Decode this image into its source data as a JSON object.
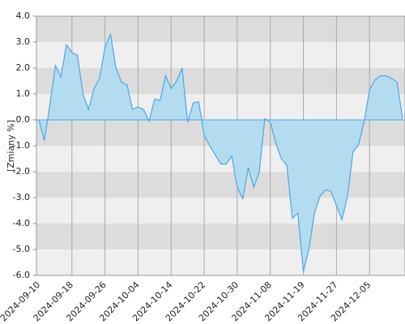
{
  "chart_data": {
    "type": "area",
    "ylabel": "[Zmiany %]",
    "categories": [
      "2024-09-10",
      null,
      null,
      null,
      null,
      null,
      "2024-09-18",
      null,
      null,
      null,
      null,
      null,
      "2024-09-26",
      null,
      null,
      null,
      null,
      null,
      "2024-10-04",
      null,
      null,
      null,
      null,
      null,
      "2024-10-14",
      null,
      null,
      null,
      null,
      null,
      "2024-10-22",
      null,
      null,
      null,
      null,
      null,
      "2024-10-30",
      null,
      null,
      null,
      null,
      null,
      "2024-11-08",
      null,
      null,
      null,
      null,
      null,
      "2024-11-19",
      null,
      null,
      null,
      null,
      null,
      "2024-11-27",
      null,
      null,
      null,
      null,
      null,
      "2024-12-05",
      null,
      null,
      null,
      null,
      null,
      null
    ],
    "values": [
      0.0,
      -0.8,
      0.6,
      2.1,
      1.65,
      2.9,
      2.6,
      2.5,
      1.0,
      0.4,
      1.2,
      1.6,
      2.8,
      3.3,
      2.0,
      1.45,
      1.35,
      0.4,
      0.5,
      0.4,
      -0.05,
      0.8,
      0.75,
      1.7,
      1.2,
      1.5,
      2.0,
      -0.1,
      0.65,
      0.7,
      -0.6,
      -1.0,
      -1.35,
      -1.7,
      -1.7,
      -1.4,
      -2.6,
      -3.05,
      -1.85,
      -2.6,
      -2.0,
      0.05,
      -0.1,
      -0.9,
      -1.5,
      -1.75,
      -3.8,
      -3.6,
      -5.85,
      -5.0,
      -3.6,
      -2.95,
      -2.7,
      -2.75,
      -3.3,
      -3.85,
      -2.95,
      -1.25,
      -0.95,
      -0.1,
      1.15,
      1.55,
      1.7,
      1.7,
      1.6,
      1.45,
      0.05
    ],
    "color": "#4da6e8",
    "fill": "#b3dcf0",
    "ylim": [
      -6,
      4
    ],
    "yticks": [
      {
        "value": 4,
        "label": "4.0"
      },
      {
        "value": 3,
        "label": "3.0"
      },
      {
        "value": 2,
        "label": "2.0"
      },
      {
        "value": 1,
        "label": "1.0"
      },
      {
        "value": 0,
        "label": "0.0"
      },
      {
        "value": -1,
        "label": "-1.0"
      },
      {
        "value": -2,
        "label": "-2.0"
      },
      {
        "value": -3,
        "label": "-3.0"
      },
      {
        "value": -4,
        "label": "-4.0"
      },
      {
        "value": -5,
        "label": "-5.0"
      },
      {
        "value": -6,
        "label": "-6.0"
      }
    ],
    "band_colors": [
      "#dcdcdc",
      "#efefef"
    ],
    "grid": true
  }
}
